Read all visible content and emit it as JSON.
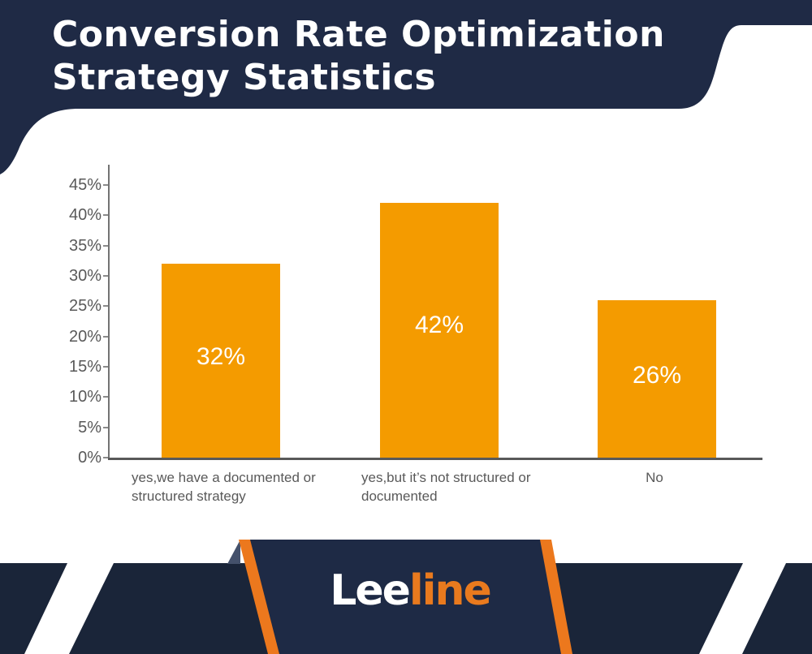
{
  "header": {
    "title_lines": [
      "Conversion Rate Optimization",
      "Strategy Statistics"
    ]
  },
  "chart_data": {
    "type": "bar",
    "title": "Conversion Rate Optimization Strategy Statistics",
    "categories": [
      "yes,we have a documented or\nstructured strategy",
      "yes,but it’s not structured or\ndocumented",
      "No"
    ],
    "values": [
      32,
      42,
      26
    ],
    "bar_labels": [
      "32%",
      "42%",
      "26%"
    ],
    "xlabel": "",
    "ylabel": "",
    "ylim": [
      0,
      45
    ],
    "ytick_labels": [
      "0%",
      "5%",
      "10%",
      "15%",
      "20%",
      "25%",
      "30%",
      "35%",
      "40%",
      "45%"
    ],
    "grid": false,
    "legend": false,
    "bar_color": "#F49B00",
    "bar_label_color": "#FFFFFF",
    "axis_color": "#595959",
    "tick_label_color": "#595959"
  },
  "footer": {
    "logo_part1": "Lee",
    "logo_part2": "line"
  },
  "colors": {
    "navy_header": "#1F2A45",
    "navy_band": "#1A2539",
    "navy_plate": "#1E2A45",
    "fold_slate": "#44516B",
    "accent_orange": "#EC781D",
    "logo_orange": "#E97A1E",
    "background": "#FFFFFF"
  }
}
